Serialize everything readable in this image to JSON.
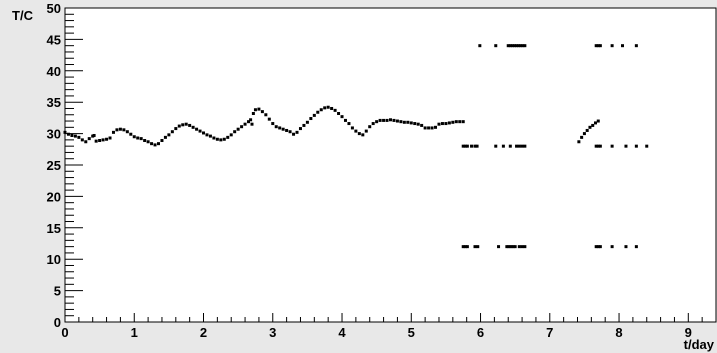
{
  "chart_data": {
    "type": "scatter",
    "title": "",
    "xlabel": "t/day",
    "ylabel": "T/C",
    "xlim": [
      0,
      9.4
    ],
    "ylim": [
      0,
      50
    ],
    "x_ticks": [
      0,
      1,
      2,
      3,
      4,
      5,
      6,
      7,
      8,
      9
    ],
    "y_ticks": [
      0,
      5,
      10,
      15,
      20,
      25,
      30,
      35,
      40,
      45,
      50
    ],
    "grid": false,
    "legend": "none",
    "colors": {
      "background": "#e8e8e8",
      "plot_area": "#ffffff",
      "marker": "#000000"
    },
    "series": [
      {
        "description": "continuous temperature trace",
        "points": [
          [
            0.0,
            30.2
          ],
          [
            0.05,
            29.9
          ],
          [
            0.1,
            29.7
          ],
          [
            0.15,
            29.6
          ],
          [
            0.2,
            29.4
          ],
          [
            0.25,
            29.0
          ],
          [
            0.3,
            28.7
          ],
          [
            0.35,
            29.2
          ],
          [
            0.4,
            29.6
          ],
          [
            0.42,
            29.7
          ],
          [
            0.45,
            28.8
          ],
          [
            0.5,
            28.9
          ],
          [
            0.55,
            29.0
          ],
          [
            0.6,
            29.1
          ],
          [
            0.65,
            29.3
          ],
          [
            0.7,
            30.2
          ],
          [
            0.75,
            30.6
          ],
          [
            0.8,
            30.7
          ],
          [
            0.85,
            30.6
          ],
          [
            0.9,
            30.3
          ],
          [
            0.95,
            29.9
          ],
          [
            1.0,
            29.5
          ],
          [
            1.05,
            29.3
          ],
          [
            1.1,
            29.2
          ],
          [
            1.15,
            28.9
          ],
          [
            1.2,
            28.7
          ],
          [
            1.25,
            28.4
          ],
          [
            1.3,
            28.2
          ],
          [
            1.35,
            28.4
          ],
          [
            1.4,
            28.9
          ],
          [
            1.45,
            29.4
          ],
          [
            1.5,
            29.8
          ],
          [
            1.55,
            30.3
          ],
          [
            1.6,
            30.8
          ],
          [
            1.65,
            31.2
          ],
          [
            1.7,
            31.4
          ],
          [
            1.75,
            31.5
          ],
          [
            1.8,
            31.3
          ],
          [
            1.85,
            31.0
          ],
          [
            1.9,
            30.7
          ],
          [
            1.95,
            30.4
          ],
          [
            2.0,
            30.1
          ],
          [
            2.05,
            29.8
          ],
          [
            2.1,
            29.6
          ],
          [
            2.15,
            29.3
          ],
          [
            2.2,
            29.1
          ],
          [
            2.25,
            29.0
          ],
          [
            2.3,
            29.1
          ],
          [
            2.35,
            29.4
          ],
          [
            2.4,
            29.8
          ],
          [
            2.45,
            30.3
          ],
          [
            2.5,
            30.7
          ],
          [
            2.55,
            31.1
          ],
          [
            2.6,
            31.5
          ],
          [
            2.65,
            31.9
          ],
          [
            2.68,
            32.2
          ],
          [
            2.7,
            31.5
          ],
          [
            2.72,
            33.2
          ],
          [
            2.75,
            33.8
          ],
          [
            2.8,
            33.9
          ],
          [
            2.85,
            33.5
          ],
          [
            2.9,
            33.0
          ],
          [
            2.95,
            32.3
          ],
          [
            3.0,
            31.6
          ],
          [
            3.05,
            31.1
          ],
          [
            3.1,
            30.9
          ],
          [
            3.15,
            30.7
          ],
          [
            3.2,
            30.5
          ],
          [
            3.25,
            30.3
          ],
          [
            3.3,
            29.9
          ],
          [
            3.35,
            30.2
          ],
          [
            3.4,
            30.8
          ],
          [
            3.45,
            31.3
          ],
          [
            3.5,
            31.8
          ],
          [
            3.55,
            32.4
          ],
          [
            3.6,
            32.9
          ],
          [
            3.65,
            33.4
          ],
          [
            3.7,
            33.8
          ],
          [
            3.75,
            34.1
          ],
          [
            3.8,
            34.2
          ],
          [
            3.85,
            34.0
          ],
          [
            3.9,
            33.7
          ],
          [
            3.95,
            33.2
          ],
          [
            4.0,
            32.7
          ],
          [
            4.05,
            32.1
          ],
          [
            4.1,
            31.6
          ],
          [
            4.15,
            30.9
          ],
          [
            4.2,
            30.4
          ],
          [
            4.25,
            30.0
          ],
          [
            4.3,
            29.8
          ],
          [
            4.35,
            30.4
          ],
          [
            4.4,
            31.1
          ],
          [
            4.45,
            31.6
          ],
          [
            4.5,
            31.9
          ],
          [
            4.55,
            32.1
          ],
          [
            4.6,
            32.1
          ],
          [
            4.65,
            32.1
          ],
          [
            4.7,
            32.2
          ],
          [
            4.75,
            32.1
          ],
          [
            4.8,
            32.0
          ],
          [
            4.85,
            31.9
          ],
          [
            4.9,
            31.8
          ],
          [
            4.95,
            31.8
          ],
          [
            5.0,
            31.7
          ],
          [
            5.05,
            31.6
          ],
          [
            5.1,
            31.5
          ],
          [
            5.15,
            31.3
          ],
          [
            5.2,
            30.9
          ],
          [
            5.25,
            30.9
          ],
          [
            5.3,
            30.9
          ],
          [
            5.35,
            31.0
          ],
          [
            5.4,
            31.5
          ],
          [
            5.45,
            31.6
          ],
          [
            5.5,
            31.6
          ],
          [
            5.55,
            31.7
          ],
          [
            5.6,
            31.8
          ],
          [
            5.65,
            31.9
          ],
          [
            5.7,
            31.9
          ],
          [
            5.75,
            31.9
          ],
          [
            7.42,
            28.7
          ],
          [
            7.46,
            29.4
          ],
          [
            7.5,
            30.0
          ],
          [
            7.54,
            30.5
          ],
          [
            7.58,
            31.0
          ],
          [
            7.62,
            31.3
          ],
          [
            7.66,
            31.7
          ],
          [
            7.7,
            32.0
          ]
        ]
      },
      {
        "description": "level at 44 after day 5.8",
        "points": [
          [
            5.99,
            44
          ],
          [
            6.22,
            44
          ],
          [
            6.4,
            44
          ],
          [
            6.43,
            44
          ],
          [
            6.46,
            44
          ],
          [
            6.49,
            44
          ],
          [
            6.52,
            44
          ],
          [
            6.55,
            44
          ],
          [
            6.58,
            44
          ],
          [
            6.61,
            44
          ],
          [
            6.64,
            44
          ],
          [
            7.67,
            44
          ],
          [
            7.7,
            44
          ],
          [
            7.73,
            44
          ],
          [
            7.9,
            44
          ],
          [
            8.05,
            44
          ],
          [
            8.25,
            44
          ]
        ]
      },
      {
        "description": "level at 28 after day 5.8",
        "points": [
          [
            5.75,
            28
          ],
          [
            5.78,
            28
          ],
          [
            5.81,
            28
          ],
          [
            5.87,
            28
          ],
          [
            5.92,
            28
          ],
          [
            5.95,
            28
          ],
          [
            6.22,
            28
          ],
          [
            6.33,
            28
          ],
          [
            6.43,
            28
          ],
          [
            6.52,
            28
          ],
          [
            6.56,
            28
          ],
          [
            6.6,
            28
          ],
          [
            6.64,
            28
          ],
          [
            7.67,
            28
          ],
          [
            7.7,
            28
          ],
          [
            7.73,
            28
          ],
          [
            7.9,
            28
          ],
          [
            8.1,
            28
          ],
          [
            8.25,
            28
          ],
          [
            8.4,
            28
          ]
        ]
      },
      {
        "description": "level at 12 after day 5.8",
        "points": [
          [
            5.75,
            12
          ],
          [
            5.78,
            12
          ],
          [
            5.81,
            12
          ],
          [
            5.92,
            12
          ],
          [
            5.96,
            12
          ],
          [
            6.26,
            12
          ],
          [
            6.38,
            12
          ],
          [
            6.41,
            12
          ],
          [
            6.44,
            12
          ],
          [
            6.47,
            12
          ],
          [
            6.5,
            12
          ],
          [
            6.56,
            12
          ],
          [
            6.6,
            12
          ],
          [
            6.64,
            12
          ],
          [
            7.67,
            12
          ],
          [
            7.7,
            12
          ],
          [
            7.73,
            12
          ],
          [
            7.9,
            12
          ],
          [
            8.1,
            12
          ],
          [
            8.25,
            12
          ]
        ]
      }
    ]
  }
}
